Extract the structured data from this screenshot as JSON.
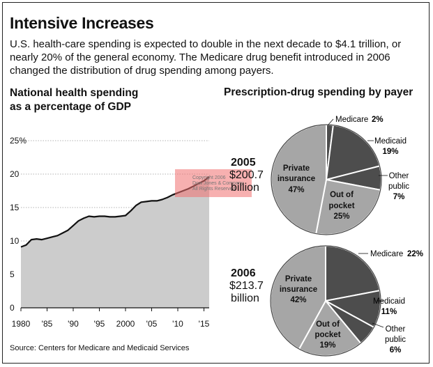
{
  "header": {
    "title": "Intensive Increases",
    "description": "U.S. health-care spending is expected to double in the next decade to $4.1 trillion, or nearly 20% of the general economy. The Medicare drug benefit introduced in 2006 changed the distribution of drug spending among payers.",
    "source": "Source: Centers for Medicare and Medicaid Services"
  },
  "watermark": [
    "Copyright 2006",
    "Dow Jones & Company",
    "All Rights Reserved"
  ],
  "colors": {
    "area": "#cccccc",
    "line": "#111111",
    "dark_slice": "#4d4d4d",
    "light_slice": "#a6a6a6",
    "watermark": "#f07070"
  },
  "chart_data": [
    {
      "type": "area",
      "title": "National health spending as a percentage of GDP",
      "title_lines": [
        "National health spending",
        "as a percentage of GDP"
      ],
      "xlim": [
        1980,
        2016
      ],
      "ylim": [
        0,
        25
      ],
      "grid": true,
      "y_ticks": [
        0,
        5,
        10,
        15,
        20,
        25
      ],
      "y_tick_labels": [
        "0",
        "5",
        "10",
        "15",
        "20",
        "25%"
      ],
      "x_ticks": [
        1980,
        1985,
        1990,
        1995,
        2000,
        2005,
        2010,
        2015
      ],
      "x_tick_labels": [
        "1980",
        "'85",
        "'90",
        "'95",
        "2000",
        "'05",
        "'10",
        "'15"
      ],
      "x": [
        1980,
        1981,
        1982,
        1983,
        1984,
        1985,
        1986,
        1987,
        1988,
        1989,
        1990,
        1991,
        1992,
        1993,
        1994,
        1995,
        1996,
        1997,
        1998,
        1999,
        2000,
        2001,
        2002,
        2003,
        2004,
        2005,
        2006,
        2007,
        2008,
        2009,
        2010,
        2011,
        2012,
        2013,
        2014,
        2015,
        2016
      ],
      "y": [
        9.1,
        9.4,
        10.2,
        10.3,
        10.2,
        10.4,
        10.6,
        10.8,
        11.2,
        11.6,
        12.3,
        13.0,
        13.4,
        13.7,
        13.6,
        13.7,
        13.7,
        13.6,
        13.6,
        13.7,
        13.8,
        14.5,
        15.3,
        15.8,
        15.9,
        16.0,
        16.0,
        16.2,
        16.5,
        16.9,
        17.2,
        17.5,
        17.8,
        18.2,
        18.6,
        19.0,
        19.6
      ]
    },
    {
      "type": "pie",
      "title": "Prescription-drug spending by payer",
      "charts": [
        {
          "year": "2005",
          "amount": "$200.7",
          "unit": "billion",
          "slices": [
            {
              "name": "Medicare",
              "value": 2,
              "label": "2%"
            },
            {
              "name": "Medicaid",
              "value": 19,
              "label": "19%"
            },
            {
              "name": "Other public",
              "value": 7,
              "label": "7%"
            },
            {
              "name": "Out of pocket",
              "value": 25,
              "label": "25%"
            },
            {
              "name": "Private insurance",
              "value": 47,
              "label": "47%"
            }
          ]
        },
        {
          "year": "2006",
          "amount": "$213.7",
          "unit": "billion",
          "slices": [
            {
              "name": "Medicare",
              "value": 22,
              "label": "22%"
            },
            {
              "name": "Medicaid",
              "value": 11,
              "label": "11%"
            },
            {
              "name": "Other public",
              "value": 6,
              "label": "6%"
            },
            {
              "name": "Out of pocket",
              "value": 19,
              "label": "19%"
            },
            {
              "name": "Private insurance",
              "value": 42,
              "label": "42%"
            }
          ]
        }
      ]
    }
  ]
}
